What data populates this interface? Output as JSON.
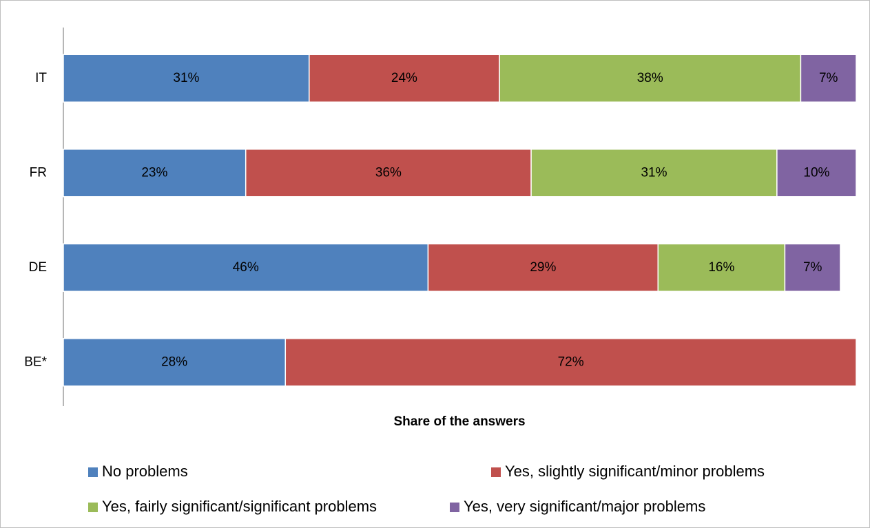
{
  "chart_data": {
    "type": "stacked_barh",
    "xlabel": "Share of the answers",
    "categories": [
      "IT",
      "FR",
      "DE",
      "BE*"
    ],
    "xlim": [
      0,
      100
    ],
    "series": [
      {
        "name": "No problems",
        "color": "#4f81bd",
        "values": [
          31,
          23,
          46,
          28
        ],
        "value_labels": [
          "31%",
          "23%",
          "46%",
          "28%"
        ]
      },
      {
        "name": "Yes, slightly significant/minor problems",
        "color": "#c0504d",
        "values": [
          24,
          36,
          29,
          72
        ],
        "value_labels": [
          "24%",
          "36%",
          "29%",
          "72%"
        ]
      },
      {
        "name": "Yes, fairly significant/significant problems",
        "color": "#9bbb59",
        "values": [
          38,
          31,
          16,
          null
        ],
        "value_labels": [
          "38%",
          "31%",
          "16%",
          null
        ]
      },
      {
        "name": "Yes, very significant/major problems",
        "color": "#8064a2",
        "values": [
          7,
          10,
          7,
          null
        ],
        "value_labels": [
          "7%",
          "10%",
          "7%",
          null
        ]
      }
    ]
  }
}
